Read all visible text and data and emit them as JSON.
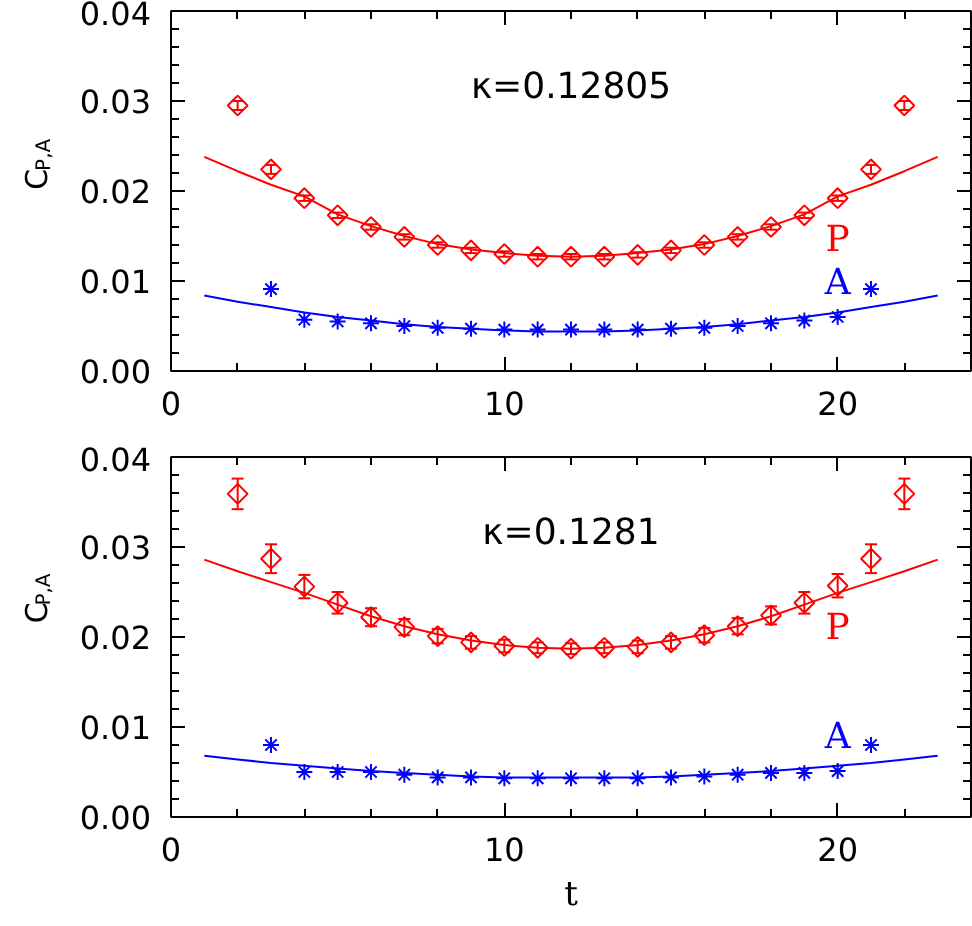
{
  "chart_data": [
    {
      "type": "scatter",
      "ylabel": "C$_{P,A}$",
      "annotations": [
        "κ=0.12805"
      ],
      "grid": false,
      "xlim": [
        0,
        24
      ],
      "xticks": [
        0,
        {
          "value": 2,
          "label": null
        },
        {
          "value": 4,
          "label": null
        },
        {
          "value": 6,
          "label": null
        },
        {
          "value": 8,
          "label": null
        },
        10,
        {
          "value": 12,
          "label": null
        },
        {
          "value": 14,
          "label": null
        },
        {
          "value": 16,
          "label": null
        },
        {
          "value": 18,
          "label": null
        },
        20,
        {
          "value": 22,
          "label": null
        }
      ],
      "ylim": [
        0,
        0.04
      ],
      "yticks": [
        {
          "value": 0,
          "label": "0.00"
        },
        {
          "value": 0.002,
          "label": null
        },
        {
          "value": 0.004,
          "label": null
        },
        {
          "value": 0.006,
          "label": null
        },
        {
          "value": 0.008,
          "label": null
        },
        0.01,
        {
          "value": 0.012,
          "label": null
        },
        {
          "value": 0.014,
          "label": null
        },
        {
          "value": 0.016,
          "label": null
        },
        {
          "value": 0.018,
          "label": null
        },
        0.02,
        {
          "value": 0.022,
          "label": null
        },
        {
          "value": 0.024,
          "label": null
        },
        {
          "value": 0.026,
          "label": null
        },
        {
          "value": 0.028,
          "label": null
        },
        0.03,
        {
          "value": 0.032,
          "label": null
        },
        {
          "value": 0.034,
          "label": null
        },
        {
          "value": 0.036,
          "label": null
        },
        {
          "value": 0.038,
          "label": null
        },
        0.04
      ],
      "series": [
        {
          "name": "P",
          "marker": "diamond",
          "color": "#ff0000",
          "x": [
            2,
            3,
            4,
            5,
            6,
            7,
            8,
            9,
            10,
            11,
            12,
            13,
            14,
            15,
            16,
            17,
            18,
            19,
            20,
            21,
            22
          ],
          "values": [
            0.0295,
            0.0224,
            0.0192,
            0.0173,
            0.016,
            0.0149,
            0.014,
            0.0134,
            0.013,
            0.0127,
            0.0127,
            0.0127,
            0.0129,
            0.0134,
            0.014,
            0.0149,
            0.016,
            0.0173,
            0.0192,
            0.0224,
            0.0295
          ],
          "errors": [
            0.0005,
            0.0005,
            0.0003,
            0.0003,
            0.0003,
            0.0003,
            0.0003,
            0.0003,
            0.0003,
            0.0003,
            0.0003,
            0.0003,
            0.0003,
            0.0003,
            0.0003,
            0.0003,
            0.0003,
            0.0003,
            0.0003,
            0.0005,
            0.0005
          ]
        },
        {
          "type": "line",
          "color": "#ff0000",
          "x": [
            1,
            2,
            3,
            4,
            5,
            6,
            7,
            8,
            9,
            10,
            11,
            12,
            13,
            14,
            15,
            16,
            17,
            18,
            19,
            20,
            21,
            22,
            23
          ],
          "values": [
            0.0238,
            0.0222,
            0.0207,
            0.0194,
            0.0174,
            0.0161,
            0.015,
            0.0141,
            0.0135,
            0.0131,
            0.0128,
            0.0127,
            0.0128,
            0.0131,
            0.0135,
            0.0141,
            0.015,
            0.0161,
            0.0174,
            0.0194,
            0.0207,
            0.0222,
            0.0238
          ]
        },
        {
          "name": "A",
          "marker": "cross",
          "color": "#0000ff",
          "x": [
            3,
            4,
            5,
            6,
            7,
            8,
            9,
            10,
            11,
            12,
            13,
            14,
            15,
            16,
            17,
            18,
            19,
            20,
            21
          ],
          "values": [
            0.0091,
            0.0057,
            0.0055,
            0.0053,
            0.005,
            0.0048,
            0.0047,
            0.0046,
            0.0046,
            0.0046,
            0.0046,
            0.0046,
            0.0047,
            0.0048,
            0.005,
            0.0053,
            0.0056,
            0.006,
            0.0091
          ]
        },
        {
          "type": "line",
          "color": "#0000ff",
          "x": [
            1,
            2,
            3,
            4,
            5,
            6,
            7,
            8,
            9,
            10,
            11,
            12,
            13,
            14,
            15,
            16,
            17,
            18,
            19,
            20,
            21,
            22,
            23
          ],
          "values": [
            0.0084,
            0.0077,
            0.0071,
            0.0065,
            0.006,
            0.0056,
            0.0052,
            0.0049,
            0.0047,
            0.0045,
            0.0044,
            0.0044,
            0.0044,
            0.0045,
            0.0047,
            0.0049,
            0.0052,
            0.0056,
            0.006,
            0.0065,
            0.0071,
            0.0077,
            0.0084
          ]
        }
      ]
    },
    {
      "type": "scatter",
      "xlabel": "t",
      "ylabel": "C$_{P,A}$",
      "annotations": [
        "κ=0.1281"
      ],
      "grid": false,
      "xlim": [
        0,
        24
      ],
      "xticks": [
        0,
        {
          "value": 2,
          "label": null
        },
        {
          "value": 4,
          "label": null
        },
        {
          "value": 6,
          "label": null
        },
        {
          "value": 8,
          "label": null
        },
        10,
        {
          "value": 12,
          "label": null
        },
        {
          "value": 14,
          "label": null
        },
        {
          "value": 16,
          "label": null
        },
        {
          "value": 18,
          "label": null
        },
        20,
        {
          "value": 22,
          "label": null
        }
      ],
      "ylim": [
        0,
        0.04
      ],
      "yticks": [
        {
          "value": 0,
          "label": "0.00"
        },
        {
          "value": 0.002,
          "label": null
        },
        {
          "value": 0.004,
          "label": null
        },
        {
          "value": 0.006,
          "label": null
        },
        {
          "value": 0.008,
          "label": null
        },
        0.01,
        {
          "value": 0.012,
          "label": null
        },
        {
          "value": 0.014,
          "label": null
        },
        {
          "value": 0.016,
          "label": null
        },
        {
          "value": 0.018,
          "label": null
        },
        0.02,
        {
          "value": 0.022,
          "label": null
        },
        {
          "value": 0.024,
          "label": null
        },
        {
          "value": 0.026,
          "label": null
        },
        {
          "value": 0.028,
          "label": null
        },
        0.03,
        {
          "value": 0.032,
          "label": null
        },
        {
          "value": 0.034,
          "label": null
        },
        {
          "value": 0.036,
          "label": null
        },
        {
          "value": 0.038,
          "label": null
        },
        0.04
      ],
      "series": [
        {
          "name": "P",
          "marker": "diamond",
          "color": "#ff0000",
          "x": [
            2,
            3,
            4,
            5,
            6,
            7,
            8,
            9,
            10,
            11,
            12,
            13,
            14,
            15,
            16,
            17,
            18,
            19,
            20,
            21,
            22
          ],
          "values": [
            0.0359,
            0.0287,
            0.0256,
            0.0238,
            0.0222,
            0.0211,
            0.0201,
            0.0194,
            0.019,
            0.0188,
            0.0187,
            0.0188,
            0.0189,
            0.0194,
            0.0202,
            0.0212,
            0.0224,
            0.0238,
            0.0257,
            0.0287,
            0.0359
          ],
          "errors": [
            0.0017,
            0.0016,
            0.0013,
            0.0012,
            0.001,
            0.0009,
            0.0008,
            0.0007,
            0.0007,
            0.0006,
            0.0006,
            0.0006,
            0.0007,
            0.0007,
            0.0008,
            0.0009,
            0.001,
            0.0012,
            0.0013,
            0.0016,
            0.0017
          ]
        },
        {
          "type": "line",
          "color": "#ff0000",
          "x": [
            1,
            2,
            3,
            4,
            5,
            6,
            7,
            8,
            9,
            10,
            11,
            12,
            13,
            14,
            15,
            16,
            17,
            18,
            19,
            20,
            21,
            22,
            23
          ],
          "values": [
            0.0286,
            0.0273,
            0.0261,
            0.0249,
            0.0236,
            0.0223,
            0.0212,
            0.0203,
            0.0196,
            0.0191,
            0.0188,
            0.0187,
            0.0188,
            0.0191,
            0.0196,
            0.0203,
            0.0212,
            0.0223,
            0.0236,
            0.0249,
            0.0261,
            0.0273,
            0.0286
          ]
        },
        {
          "name": "A",
          "marker": "cross",
          "color": "#0000ff",
          "x": [
            3,
            4,
            5,
            6,
            7,
            8,
            9,
            10,
            11,
            12,
            13,
            14,
            15,
            16,
            17,
            18,
            19,
            20,
            21
          ],
          "values": [
            0.008,
            0.005,
            0.005,
            0.005,
            0.0047,
            0.0044,
            0.0044,
            0.0043,
            0.0043,
            0.0043,
            0.0043,
            0.0043,
            0.0044,
            0.0045,
            0.0047,
            0.0049,
            0.0049,
            0.0051,
            0.008
          ]
        },
        {
          "type": "line",
          "color": "#0000ff",
          "x": [
            1,
            2,
            3,
            4,
            5,
            6,
            7,
            8,
            9,
            10,
            11,
            12,
            13,
            14,
            15,
            16,
            17,
            18,
            19,
            20,
            21,
            22,
            23
          ],
          "values": [
            0.0068,
            0.0064,
            0.006,
            0.0057,
            0.0054,
            0.0051,
            0.0049,
            0.0047,
            0.0045,
            0.0044,
            0.0044,
            0.0044,
            0.0044,
            0.0044,
            0.0045,
            0.0047,
            0.0049,
            0.0051,
            0.0054,
            0.0057,
            0.006,
            0.0064,
            0.0068
          ]
        }
      ]
    }
  ]
}
